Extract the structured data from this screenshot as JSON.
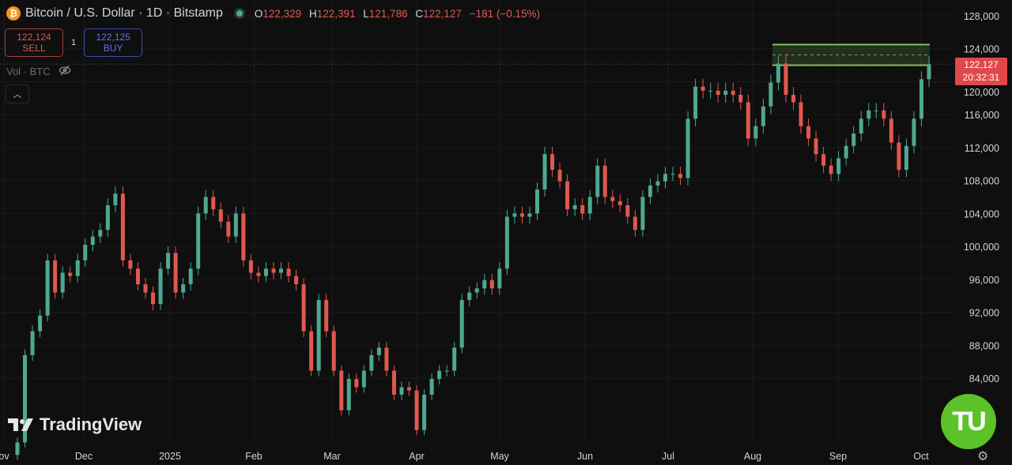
{
  "header": {
    "symbol_title": "Bitcoin / U.S. Dollar · 1D · Bitstamp",
    "coin_icon": "bitcoin-icon",
    "open_label": "O",
    "open": "122,329",
    "high_label": "H",
    "high": "122,391",
    "low_label": "L",
    "low": "121,786",
    "close_label": "C",
    "close": "122,127",
    "change": "−181 (−0.15%)"
  },
  "trade": {
    "sell_price": "122,124",
    "sell_label": "SELL",
    "spread": "1",
    "buy_price": "122,125",
    "buy_label": "BUY"
  },
  "volume": {
    "label": "Vol · BTC",
    "icon": "eye-off-icon"
  },
  "price_badge": {
    "price": "122,127",
    "countdown": "20:32:31"
  },
  "watermark": "TradingView",
  "corner_logo": "TU",
  "colors": {
    "up": "#4fa890",
    "down": "#e0584f",
    "background": "#0f0f0f",
    "zone": "#7cc35a",
    "badge": "#e0484a"
  },
  "chart_data": {
    "type": "candlestick",
    "title": "Bitcoin / U.S. Dollar · 1D · Bitstamp",
    "x_ticks": [
      "ov",
      "Dec",
      "2025",
      "Feb",
      "Mar",
      "Apr",
      "May",
      "Jun",
      "Jul",
      "Aug",
      "Sep",
      "Oct"
    ],
    "y_ticks": [
      "128,000",
      "124,000",
      "120,000",
      "116,000",
      "112,000",
      "108,000",
      "104,000",
      "100,000",
      "96,000",
      "92,000",
      "88,000",
      "84,000"
    ],
    "ylim": [
      76000,
      130000
    ],
    "grid": true,
    "current_price": 122127,
    "zone": {
      "top": 124500,
      "bottom": 122000,
      "mid": 123250
    },
    "closes_approx": [
      76200,
      86800,
      89700,
      91600,
      98300,
      94400,
      96800,
      96400,
      98300,
      100200,
      101200,
      102000,
      105000,
      106400,
      98300,
      97300,
      95400,
      94400,
      93000,
      97300,
      99200,
      94400,
      95400,
      97300,
      104000,
      106000,
      104500,
      103000,
      101200,
      104000,
      98300,
      96800,
      96400,
      97300,
      96800,
      97300,
      96400,
      95400,
      89700,
      84900,
      93500,
      89700,
      84900,
      80100,
      83900,
      82900,
      84900,
      86800,
      87700,
      84900,
      82000,
      82900,
      82500,
      77700,
      82000,
      83900,
      84900,
      84900,
      87700,
      93500,
      94400,
      94900,
      95900,
      94900,
      97300,
      103600,
      104000,
      103600,
      104000,
      106900,
      111200,
      109300,
      107900,
      104500,
      105000,
      104000,
      106000,
      109800,
      106000,
      105500,
      105000,
      103600,
      102000,
      106000,
      107400,
      107900,
      108800,
      108800,
      108300,
      115500,
      119400,
      118900,
      118900,
      118400,
      118900,
      118400,
      117500,
      113100,
      114600,
      117000,
      119900,
      122200,
      118400,
      117500,
      114600,
      113100,
      111200,
      109800,
      108800,
      110700,
      112200,
      113700,
      115500,
      116500,
      116500,
      115500,
      112600,
      109300,
      112200,
      115500,
      120300,
      122127
    ]
  }
}
